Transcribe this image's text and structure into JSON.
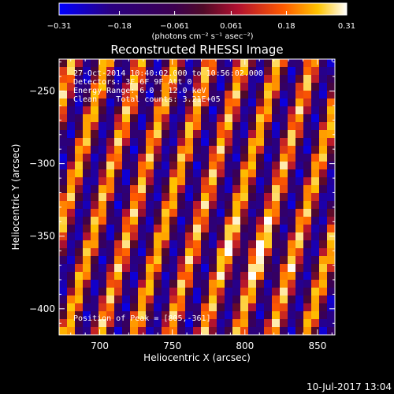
{
  "chart_data": {
    "type": "heatmap",
    "title": "Reconstructed RHESSI Image",
    "xlabel": "Heliocentric X (arcsec)",
    "ylabel": "Heliocentric Y (arcsec)",
    "xlim": [
      672,
      862
    ],
    "ylim": [
      -418,
      -228
    ],
    "x_ticks": [
      700,
      750,
      800,
      850
    ],
    "y_ticks": [
      -250,
      -300,
      -350,
      -400
    ],
    "x_tick_labels": [
      "700",
      "750",
      "800",
      "850"
    ],
    "y_tick_labels": [
      "−250",
      "−300",
      "−350",
      "−400"
    ],
    "colorbar": {
      "colormap": "hot-blue-violet",
      "min": -0.31,
      "max": 0.31,
      "tick_labels": [
        "−0.31",
        "−0.18",
        "−0.061",
        "0.061",
        "0.18",
        "0.31"
      ],
      "tick_values": [
        -0.31,
        -0.18,
        -0.061,
        0.061,
        0.18,
        0.31
      ],
      "unit_label": "(photons cm⁻² s⁻¹ asec⁻²)"
    },
    "annotations": [
      "27-Oct-2014 10:40:02.000 to 10:56:02.000",
      "Detectors: 3F 6F 9F Att 0",
      "Energy Range: 6.0 - 12.0 keV",
      "Clean    Total counts: 3.21E+05"
    ],
    "peak_text": "Position of Peak = [805,-361]",
    "peak": {
      "x": 805,
      "y": -361
    },
    "pattern": "diagonal stripes"
  },
  "footer": {
    "date": "10-Jul-2017 13:04"
  },
  "colors": {
    "background": "#000000",
    "foreground": "#ffffff"
  }
}
